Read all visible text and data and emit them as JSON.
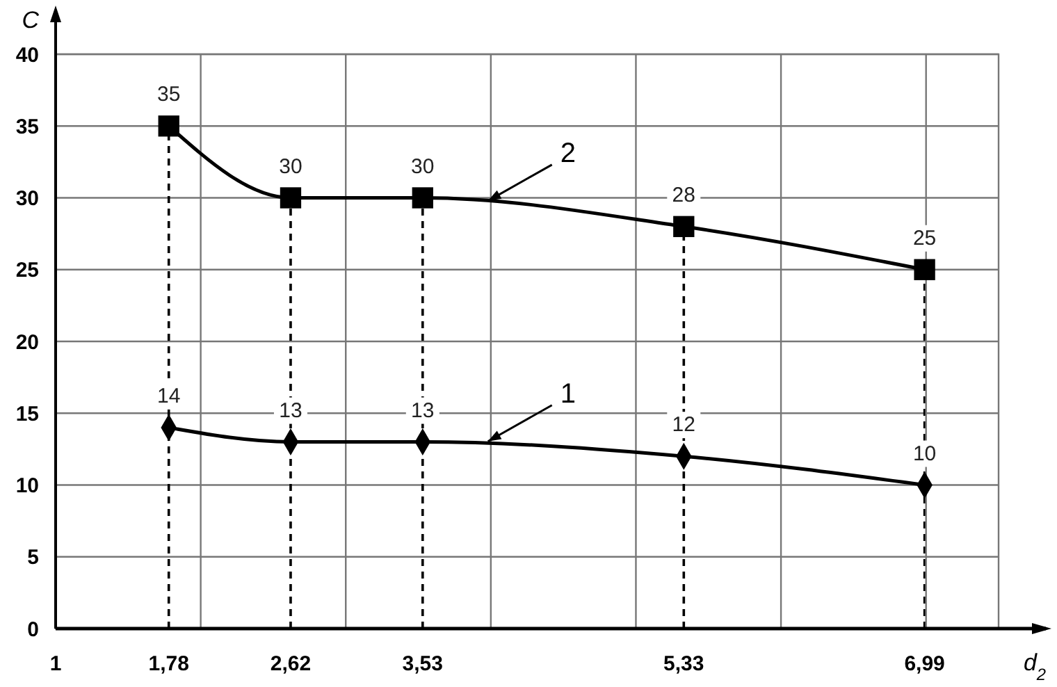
{
  "chart_data": {
    "type": "line",
    "xlabel": "d$_{2}$",
    "ylabel": "C",
    "xlim": [
      1,
      7.5
    ],
    "ylim": [
      0,
      40
    ],
    "xticks": [
      1,
      {
        "value": 1.78,
        "label": "1,78"
      },
      {
        "value": 2,
        "label": null
      },
      {
        "value": 2.62,
        "label": "2,62"
      },
      {
        "value": 3,
        "label": null
      },
      {
        "value": 3.53,
        "label": "3,53"
      },
      {
        "value": 4,
        "label": null
      },
      {
        "value": 5,
        "label": null
      },
      {
        "value": 5.33,
        "label": "5,33"
      },
      {
        "value": 6,
        "label": null
      },
      {
        "value": 6.99,
        "label": "6,99"
      },
      {
        "value": 7,
        "label": null
      }
    ],
    "yticks": [
      0,
      5,
      10,
      15,
      20,
      25,
      30,
      35,
      40
    ],
    "x": [
      1.78,
      2.62,
      3.53,
      5.33,
      6.99
    ],
    "grid": true,
    "data_labels": true,
    "line_style": "solid",
    "series": [
      {
        "name": "1",
        "color": "#000000",
        "marker": "diamond",
        "values": [
          14,
          13,
          13,
          12,
          10
        ]
      },
      {
        "name": "2",
        "color": "#000000",
        "marker": "square",
        "values": [
          35,
          30,
          30,
          28,
          25
        ]
      }
    ]
  }
}
